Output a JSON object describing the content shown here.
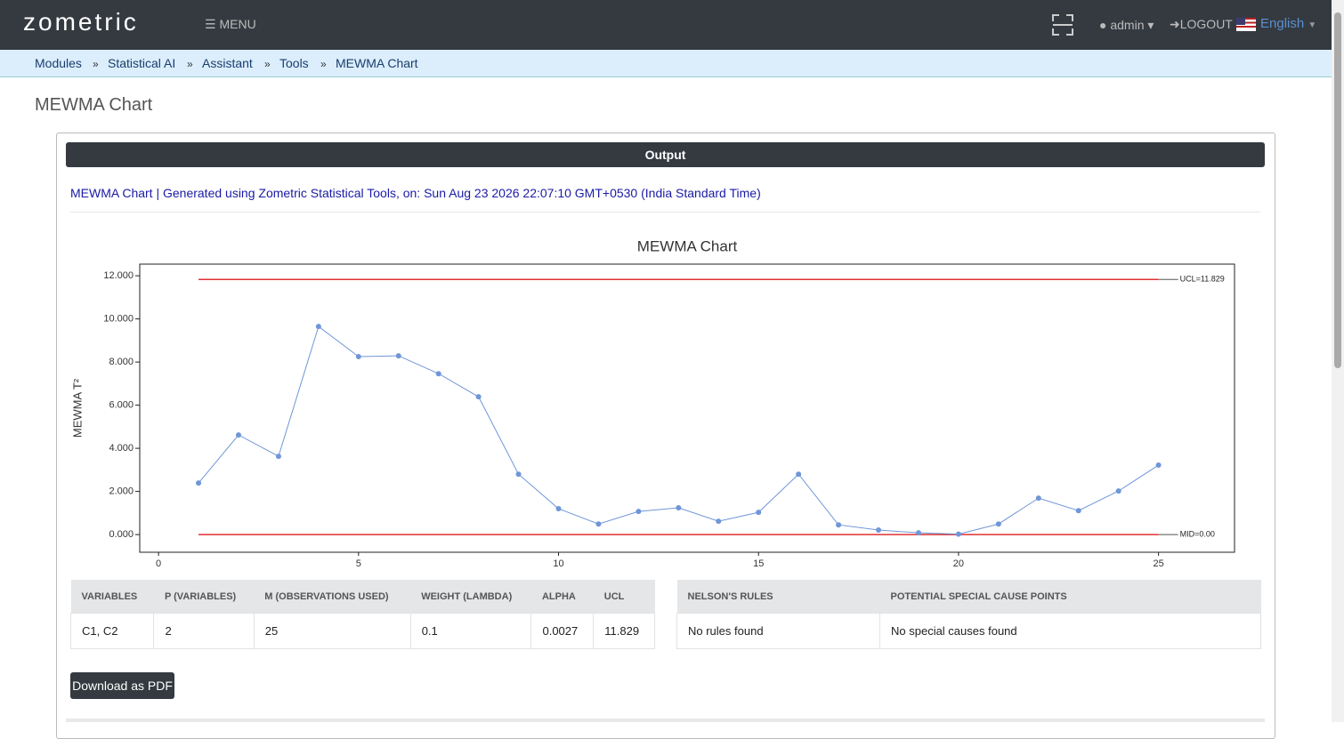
{
  "nav": {
    "logo": "zometric",
    "menu": "MENU",
    "user": "admin",
    "logout": "LOGOUT",
    "language": "English"
  },
  "breadcrumb": [
    "Modules",
    "Statistical AI",
    "Assistant",
    "Tools",
    "MEWMA Chart"
  ],
  "page_title": "MEWMA Chart",
  "output": {
    "header": "Output",
    "generated": "MEWMA Chart | Generated using Zometric Statistical Tools, on: Sun Aug 23 2026 22:07:10 GMT+0530 (India Standard Time)"
  },
  "chart_data": {
    "type": "line",
    "title": "MEWMA Chart",
    "y_label": "MEWMA T²",
    "x": [
      1,
      2,
      3,
      4,
      5,
      6,
      7,
      8,
      9,
      10,
      11,
      12,
      13,
      14,
      15,
      16,
      17,
      18,
      19,
      20,
      21,
      22,
      23,
      24,
      25
    ],
    "series": [
      {
        "name": "MEWMA T²",
        "color": "#6f96d8",
        "values": [
          2.39,
          4.62,
          3.63,
          9.65,
          8.25,
          8.29,
          7.46,
          6.39,
          2.8,
          1.2,
          0.49,
          1.07,
          1.24,
          0.62,
          1.03,
          2.8,
          0.45,
          0.21,
          0.08,
          0.02,
          0.49,
          1.69,
          1.11,
          2.02,
          3.22
        ]
      }
    ],
    "lines": [
      {
        "value": 11.829,
        "label": "UCL=11.829",
        "color": "#e03030"
      },
      {
        "value": 0,
        "label": "MID=0.00",
        "color": "#e03030"
      }
    ],
    "xlim": [
      -0.47,
      26.9
    ],
    "xticks": [
      0,
      5,
      10,
      15,
      20,
      25
    ],
    "ylim": [
      -0.82,
      12.54
    ],
    "yticks": [
      {
        "value": 0,
        "label": "0.000"
      },
      {
        "value": 2,
        "label": "2.000"
      },
      {
        "value": 4,
        "label": "4.000"
      },
      {
        "value": 6,
        "label": "6.000"
      },
      {
        "value": 8,
        "label": "8.000"
      },
      {
        "value": 10,
        "label": "10.000"
      },
      {
        "value": 12,
        "label": "12.000"
      }
    ],
    "grid": false
  },
  "summary_table": {
    "headers": [
      "VARIABLES",
      "P (VARIABLES)",
      "M (OBSERVATIONS USED)",
      "WEIGHT (LAMBDA)",
      "ALPHA",
      "UCL"
    ],
    "rows": [
      [
        "C1, C2",
        "2",
        "25",
        "0.1",
        "0.0027",
        "11.829"
      ]
    ]
  },
  "rules_table": {
    "headers": [
      "NELSON'S RULES",
      "POTENTIAL SPECIAL CAUSE POINTS"
    ],
    "rows": [
      [
        "No rules found",
        "No special causes found"
      ]
    ]
  },
  "download_button": "Download as PDF"
}
